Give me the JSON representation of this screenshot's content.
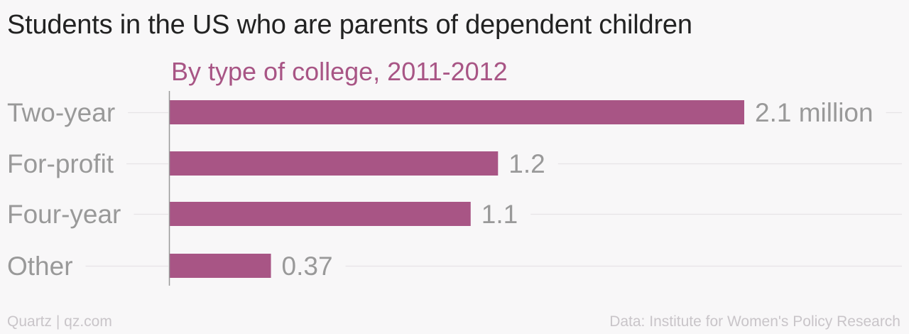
{
  "header": {
    "title": "Students in the US who are parents of dependent children"
  },
  "chart_data": {
    "type": "bar",
    "orientation": "horizontal",
    "subtitle": "By type of college, 2011-2012",
    "categories": [
      "Two-year",
      "For-profit",
      "Four-year",
      "Other"
    ],
    "values": [
      2.1,
      1.2,
      1.1,
      0.37
    ],
    "value_labels": [
      "2.1 million",
      "1.2",
      "1.1",
      "0.37"
    ],
    "xlim": [
      0,
      2.1
    ],
    "grid": "horizontal guide lines per category",
    "colors": {
      "bar": "#a85585",
      "subtitle": "#a85585",
      "category_label": "#999999",
      "value_label": "#999999"
    }
  },
  "footer": {
    "source_left": "Quartz | qz.com",
    "source_right": "Data: Institute for Women's Policy Research"
  }
}
